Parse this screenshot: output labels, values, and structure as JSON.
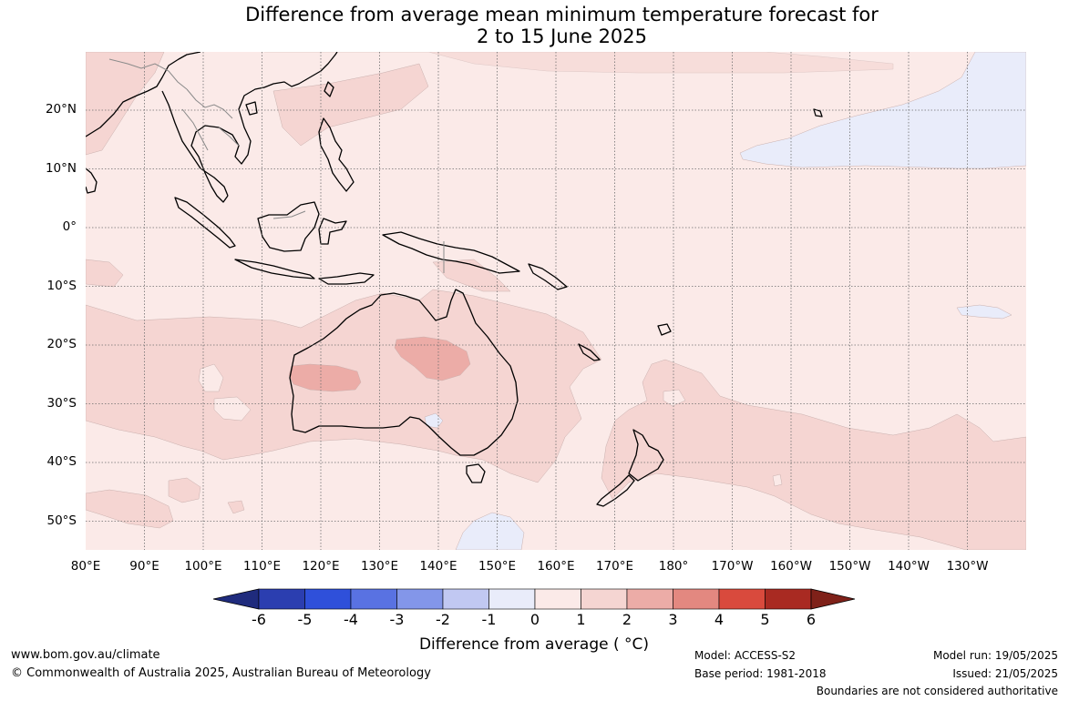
{
  "title": "Difference from average mean minimum temperature forecast for\n2 to 15 June 2025",
  "map": {
    "lat_labels": [
      "20°N",
      "10°N",
      "0°",
      "10°S",
      "20°S",
      "30°S",
      "40°S",
      "50°S"
    ],
    "lon_labels": [
      "80°E",
      "90°E",
      "100°E",
      "110°E",
      "120°E",
      "130°E",
      "140°E",
      "150°E",
      "160°E",
      "170°E",
      "180°",
      "170°W",
      "160°W",
      "150°W",
      "140°W",
      "130°W"
    ],
    "colors": {
      "ocean_base": "#fbeae8",
      "anomaly_1_2": "#f5d5d2",
      "anomaly_2_3": "#ecaca7",
      "anomaly_neg": "#e9ecfa",
      "coast": "#000000",
      "border": "#8a8a8a",
      "grid": "#6e6e6e"
    }
  },
  "colorbar": {
    "title": "Difference from average ( °C)",
    "ticks": [
      "-6",
      "-5",
      "-4",
      "-3",
      "-2",
      "-1",
      "0",
      "1",
      "2",
      "3",
      "4",
      "5",
      "6"
    ],
    "colors": [
      "#1f2b7d",
      "#2b3eb0",
      "#2f50da",
      "#5972e2",
      "#8396e9",
      "#c1c8f2",
      "#e9ecfa",
      "#fbeae8",
      "#f5d5d2",
      "#ecaca7",
      "#e38880",
      "#d94a3d",
      "#a92a22",
      "#7f2119"
    ]
  },
  "footer": {
    "url": "www.bom.gov.au/climate",
    "copyright": "© Commonwealth of Australia 2025, Australian Bureau of Meteorology",
    "model": "Model: ACCESS-S2",
    "base_period": "Base period: 1981-2018",
    "model_run": "Model run: 19/05/2025",
    "issued": "Issued: 21/05/2025",
    "disclaimer": "Boundaries are not considered authoritative"
  }
}
